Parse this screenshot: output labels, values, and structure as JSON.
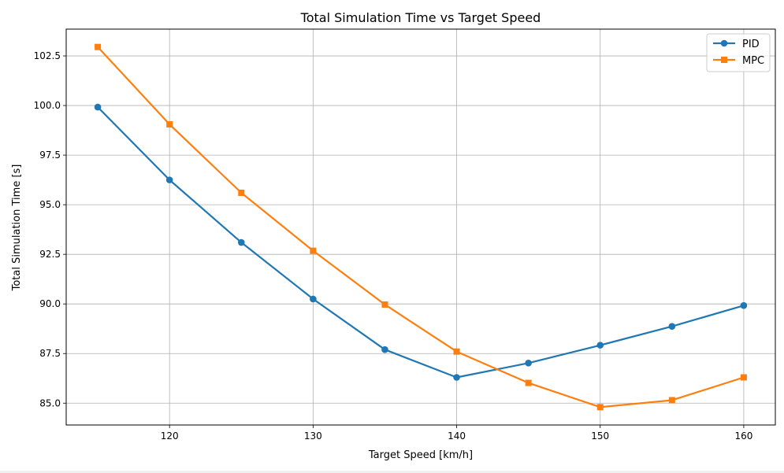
{
  "chart_data": {
    "type": "line",
    "title": "Total Simulation Time vs Target Speed",
    "xlabel": "Target Speed [km/h]",
    "ylabel": "Total Simulation Time [s]",
    "x": [
      115,
      120,
      125,
      130,
      135,
      140,
      145,
      150,
      155,
      160
    ],
    "xlim": [
      112.8,
      162.2
    ],
    "ylim": [
      83.9,
      103.85
    ],
    "xticks": [
      120,
      130,
      140,
      150,
      160
    ],
    "yticks": [
      85.0,
      87.5,
      90.0,
      92.5,
      95.0,
      97.5,
      100.0,
      102.5
    ],
    "xtick_labels": [
      "120",
      "130",
      "140",
      "150",
      "160"
    ],
    "ytick_labels": [
      "85.0",
      "87.5",
      "90.0",
      "92.5",
      "95.0",
      "97.5",
      "100.0",
      "102.5"
    ],
    "grid": true,
    "legend_position": "top-right",
    "series": [
      {
        "name": "PID",
        "color": "#1f77b4",
        "marker": "circle",
        "values": [
          99.92,
          96.25,
          93.1,
          90.25,
          87.7,
          86.3,
          87.02,
          87.92,
          88.87,
          89.92
        ]
      },
      {
        "name": "MPC",
        "color": "#ff7f0e",
        "marker": "square",
        "values": [
          102.95,
          99.05,
          95.6,
          92.68,
          89.97,
          87.6,
          86.02,
          84.8,
          85.15,
          86.3
        ]
      }
    ]
  }
}
